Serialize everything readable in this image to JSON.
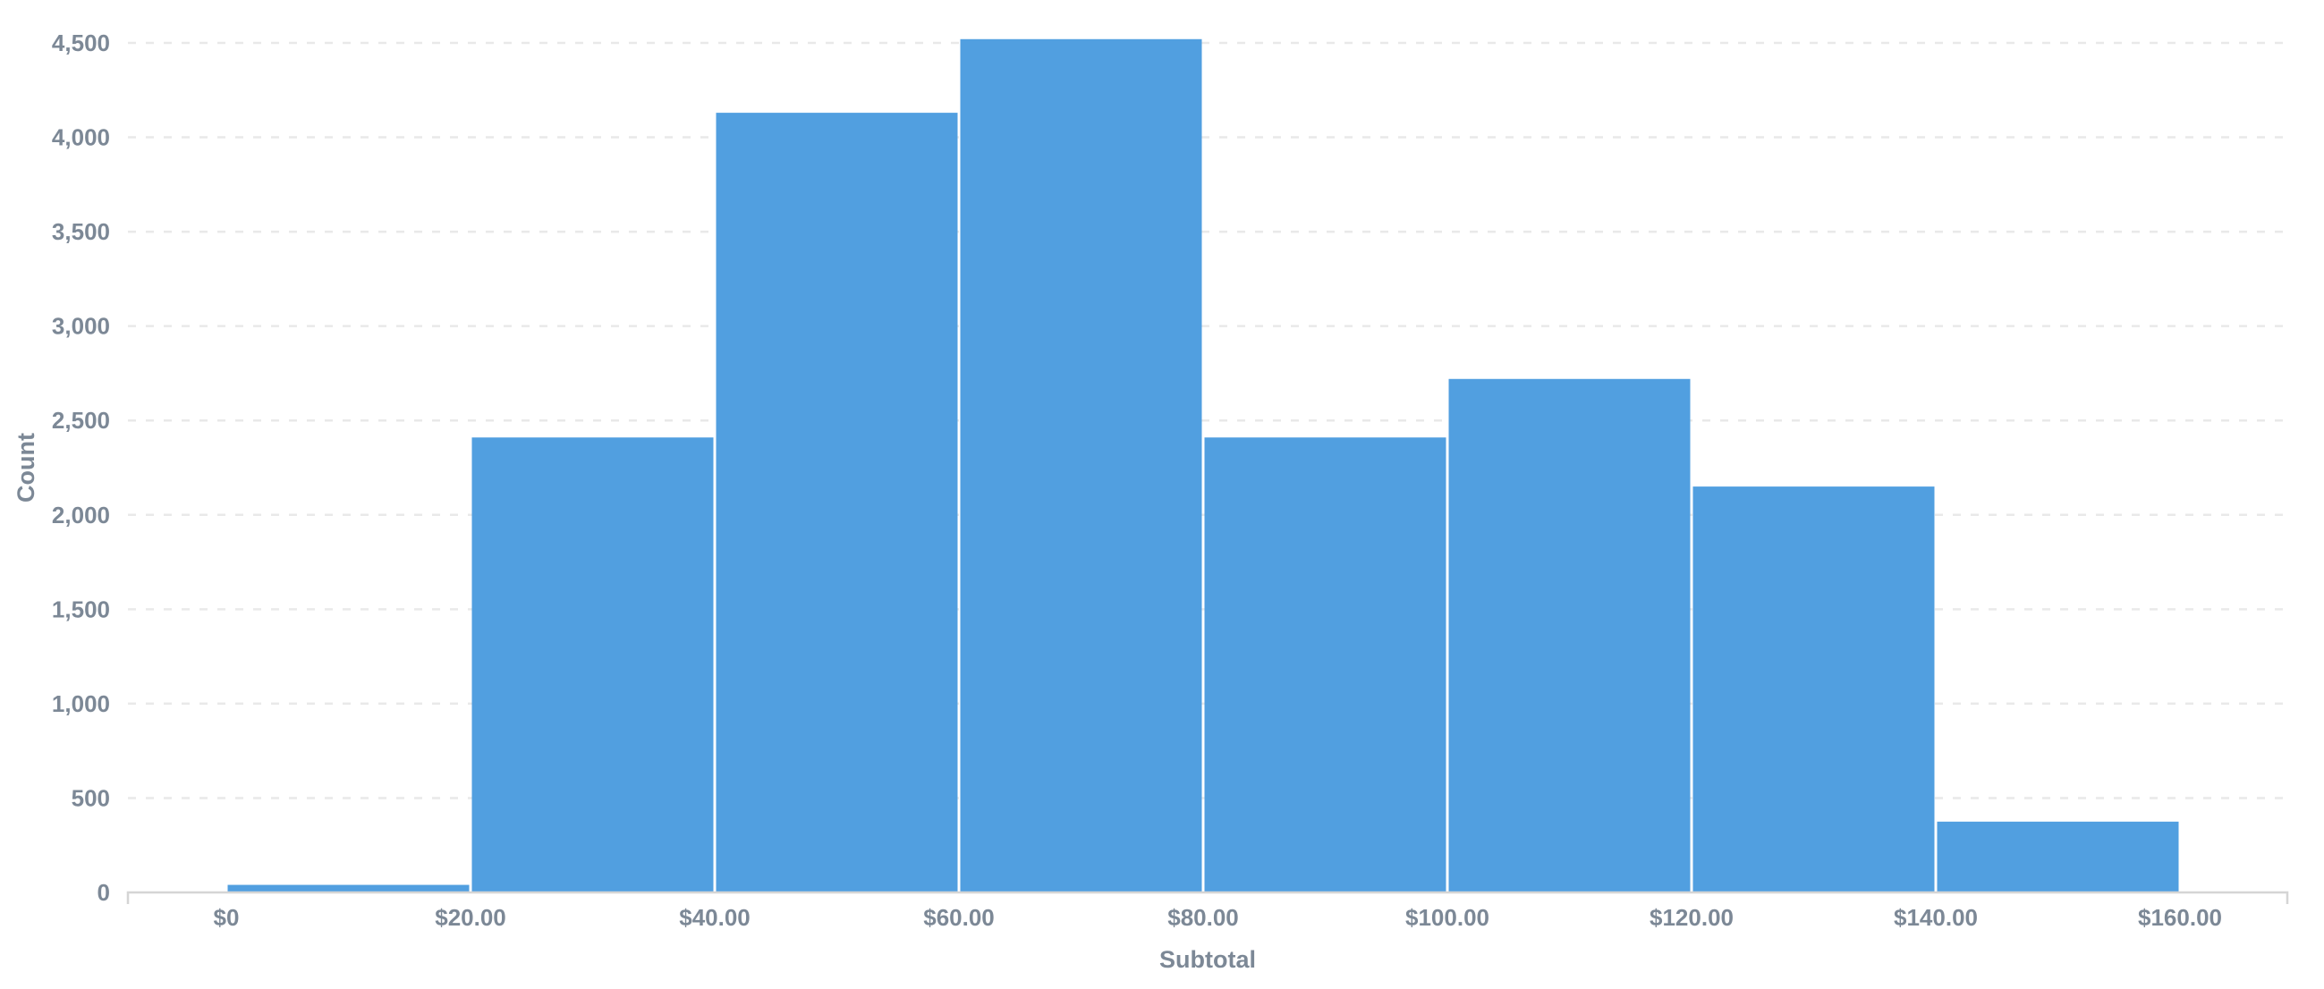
{
  "chart_data": {
    "type": "bar",
    "chart_kind": "histogram",
    "title": "",
    "xlabel": "Subtotal",
    "ylabel": "Count",
    "bin_width_dollars": 20,
    "bin_edges_dollars": [
      0,
      20,
      40,
      60,
      80,
      100,
      120,
      140,
      160
    ],
    "categories": [
      "$0-$20",
      "$20-$40",
      "$40-$60",
      "$60-$80",
      "$80-$100",
      "$100-$120",
      "$120-$140",
      "$140-$160"
    ],
    "values": [
      40,
      2410,
      4130,
      4520,
      2410,
      2720,
      2150,
      375
    ],
    "x_tick_labels": [
      "$0",
      "$20.00",
      "$40.00",
      "$60.00",
      "$80.00",
      "$100.00",
      "$120.00",
      "$140.00",
      "$160.00"
    ],
    "y_tick_labels": [
      "0",
      "500",
      "1,000",
      "1,500",
      "2,000",
      "2,500",
      "3,000",
      "3,500",
      "4,000",
      "4,500"
    ],
    "y_tick_values": [
      0,
      500,
      1000,
      1500,
      2000,
      2500,
      3000,
      3500,
      4000,
      4500
    ],
    "ylim": [
      0,
      4500
    ],
    "grid": "horizontal-dashed",
    "legend": "none",
    "colors": {
      "bar": "#519fe0",
      "bar_gap": "#ffffff",
      "gridline": "#e9e9e9",
      "axis_line": "#d5d5d5",
      "tick_text": "#7c8896",
      "axis_title_text": "#7c8896",
      "background": "#ffffff"
    }
  }
}
